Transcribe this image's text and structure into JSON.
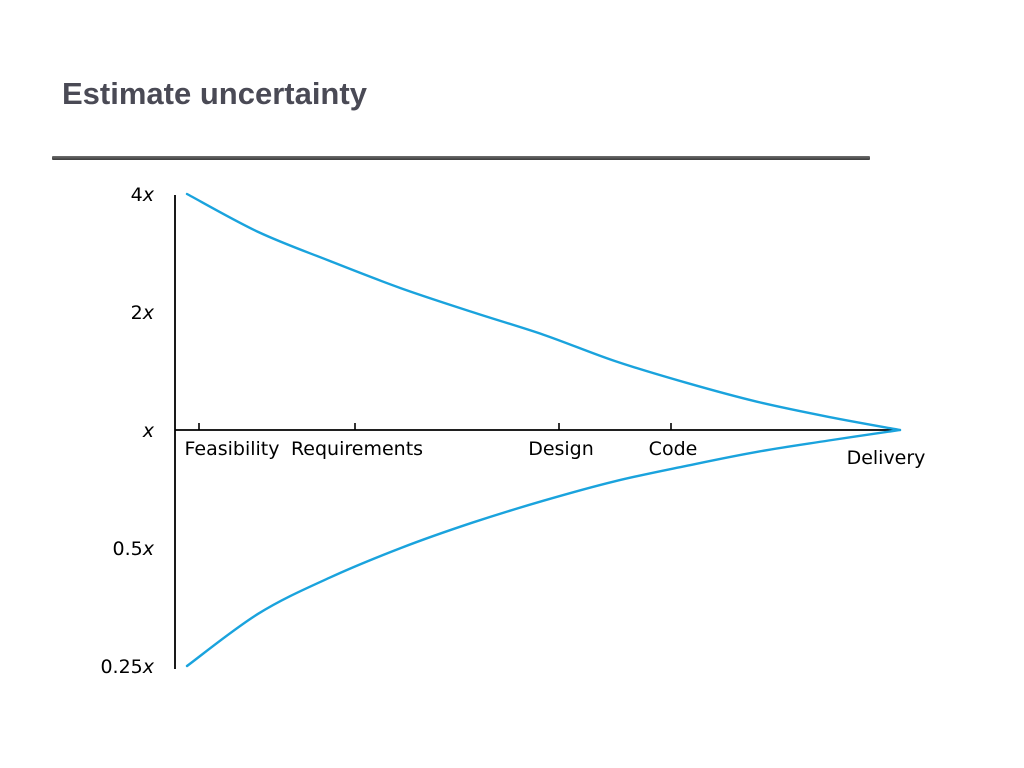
{
  "slide": {
    "title": "Estimate uncertainty"
  },
  "chart_data": {
    "type": "line",
    "title": "",
    "xlabel": "",
    "ylabel": "",
    "y_scale": "log2",
    "y_ticks": [
      {
        "value": 4,
        "label_num": "4",
        "label_var": "x"
      },
      {
        "value": 2,
        "label_num": "2",
        "label_var": "x"
      },
      {
        "value": 1,
        "label_num": "",
        "label_var": "x"
      },
      {
        "value": 0.5,
        "label_num": "0.5",
        "label_var": "x"
      },
      {
        "value": 0.25,
        "label_num": "0.25",
        "label_var": "x"
      }
    ],
    "categories": [
      "Feasibility",
      "Requirements",
      "Design",
      "Code",
      "Delivery"
    ],
    "ylim": [
      0.25,
      4
    ],
    "grid": false,
    "line_color": "#1aa3dd",
    "series": [
      {
        "points": [
          [
            0.0,
            4.0
          ],
          [
            0.1,
            3.2
          ],
          [
            0.2,
            2.7
          ],
          [
            0.3,
            2.3
          ],
          [
            0.4,
            2.0
          ],
          [
            0.5,
            1.75
          ],
          [
            0.6,
            1.5
          ],
          [
            0.7,
            1.32
          ],
          [
            0.8,
            1.18
          ],
          [
            0.9,
            1.08
          ],
          [
            1.0,
            1.0
          ]
        ]
      },
      {
        "points": [
          [
            0.0,
            0.25
          ],
          [
            0.1,
            0.34
          ],
          [
            0.2,
            0.42
          ],
          [
            0.3,
            0.5
          ],
          [
            0.4,
            0.58
          ],
          [
            0.5,
            0.66
          ],
          [
            0.6,
            0.74
          ],
          [
            0.7,
            0.81
          ],
          [
            0.8,
            0.88
          ],
          [
            0.9,
            0.94
          ],
          [
            1.0,
            1.0
          ]
        ]
      }
    ]
  }
}
